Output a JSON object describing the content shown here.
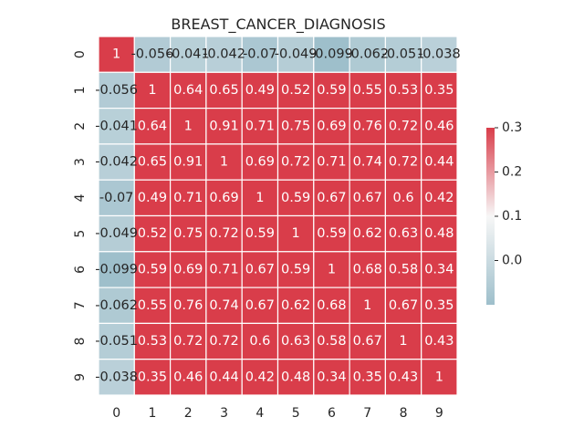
{
  "chart_data": {
    "type": "heatmap",
    "title": "BREAST_CANCER_DIAGNOSIS",
    "xlabel": "",
    "ylabel": "",
    "x_tick_labels": [
      "0",
      "1",
      "2",
      "3",
      "4",
      "5",
      "6",
      "7",
      "8",
      "9"
    ],
    "y_tick_labels": [
      "0",
      "1",
      "2",
      "3",
      "4",
      "5",
      "6",
      "7",
      "8",
      "9"
    ],
    "values": [
      [
        1,
        -0.056,
        -0.041,
        -0.042,
        -0.07,
        -0.049,
        -0.099,
        -0.062,
        -0.051,
        -0.038
      ],
      [
        -0.056,
        1,
        0.64,
        0.65,
        0.49,
        0.52,
        0.59,
        0.55,
        0.53,
        0.35
      ],
      [
        -0.041,
        0.64,
        1,
        0.91,
        0.71,
        0.75,
        0.69,
        0.76,
        0.72,
        0.46
      ],
      [
        -0.042,
        0.65,
        0.91,
        1,
        0.69,
        0.72,
        0.71,
        0.74,
        0.72,
        0.44
      ],
      [
        -0.07,
        0.49,
        0.71,
        0.69,
        1,
        0.59,
        0.67,
        0.67,
        0.6,
        0.42
      ],
      [
        -0.049,
        0.52,
        0.75,
        0.72,
        0.59,
        1,
        0.59,
        0.62,
        0.63,
        0.48
      ],
      [
        -0.099,
        0.59,
        0.69,
        0.71,
        0.67,
        0.59,
        1,
        0.68,
        0.58,
        0.34
      ],
      [
        -0.062,
        0.55,
        0.76,
        0.74,
        0.67,
        0.62,
        0.68,
        1,
        0.67,
        0.35
      ],
      [
        -0.051,
        0.53,
        0.72,
        0.72,
        0.6,
        0.63,
        0.58,
        0.67,
        1,
        0.43
      ],
      [
        -0.038,
        0.35,
        0.46,
        0.44,
        0.42,
        0.48,
        0.34,
        0.35,
        0.43,
        1
      ]
    ],
    "colorbar": {
      "vmin": -0.1,
      "vmax": 0.3,
      "ticks": [
        0.0,
        0.1,
        0.2,
        0.3
      ],
      "tick_labels": [
        "0.0",
        "0.1",
        "0.2",
        "0.3"
      ]
    },
    "colors": {
      "negative": "#9ebfcb",
      "center": "#f7f7f7",
      "positive": "#d93d4a",
      "grid": "#ffffff",
      "text_light": "#ffffff",
      "text_dark": "#262626"
    }
  }
}
